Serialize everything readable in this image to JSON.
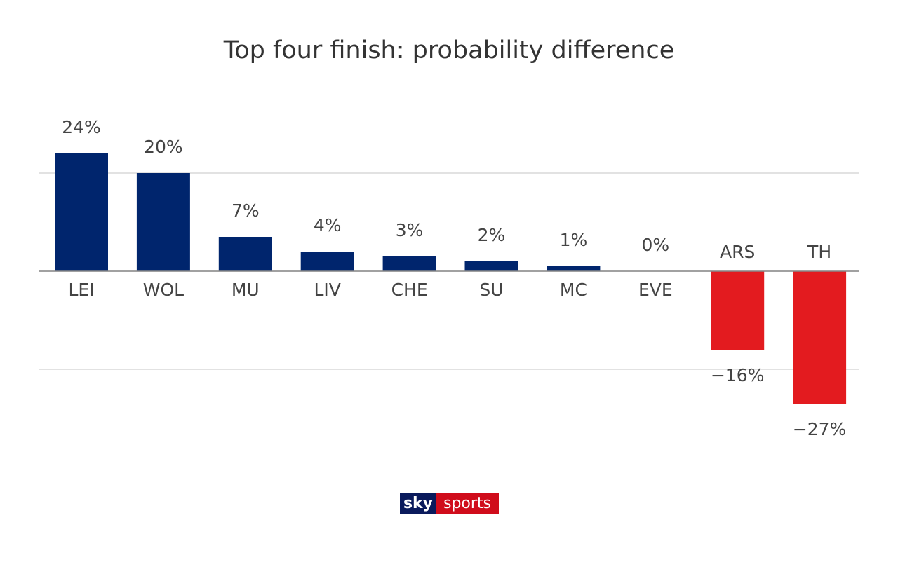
{
  "chart_data": {
    "type": "bar",
    "title": "Top four finish: probability difference",
    "categories": [
      "LEI",
      "WOL",
      "MU",
      "LIV",
      "CHE",
      "SU",
      "MC",
      "EVE",
      "ARS",
      "TH"
    ],
    "values": [
      24,
      20,
      7,
      4,
      3,
      2,
      1,
      0,
      -16,
      -27
    ],
    "value_labels": [
      "24%",
      "20%",
      "7%",
      "4%",
      "3%",
      "2%",
      "1%",
      "0%",
      "−16%",
      "−27%"
    ],
    "colors": [
      "#00256d",
      "#00256d",
      "#00256d",
      "#00256d",
      "#00256d",
      "#00256d",
      "#00256d",
      "#00256d",
      "#e31b1f",
      "#e31b1f"
    ],
    "ylim": [
      -35,
      35
    ],
    "yticks": [
      -20,
      0,
      20
    ],
    "tick_labels": false,
    "grid": true,
    "logo_text": [
      "sky",
      "sports"
    ]
  }
}
